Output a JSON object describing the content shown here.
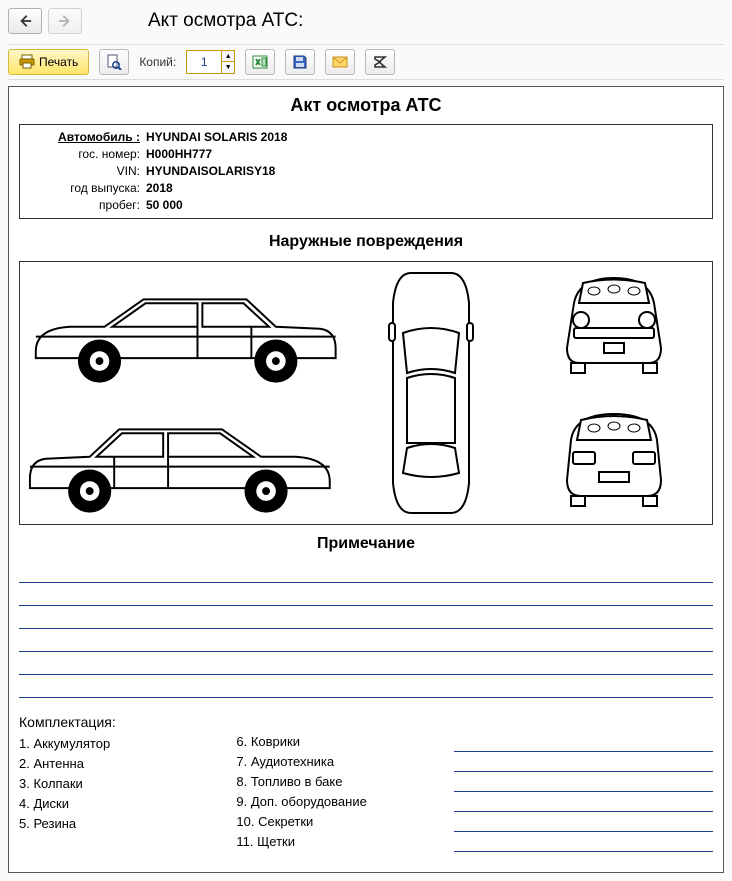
{
  "window": {
    "title": "Акт осмотра АТС:"
  },
  "toolbar": {
    "print_label": "Печать",
    "copies_label": "Копий:",
    "copies_value": "1"
  },
  "document": {
    "title": "Акт осмотра АТС",
    "info": {
      "vehicle_label": "Автомобиль :",
      "vehicle_value": "HYUNDAI SOLARIS 2018",
      "plate_label": "гос. номер:",
      "plate_value": "H000HH777",
      "vin_label": "VIN:",
      "vin_value": "HYUNDAISOLARISY18",
      "year_label": "год выпуска:",
      "year_value": "2018",
      "mileage_label": "пробег:",
      "mileage_value": "50 000"
    },
    "damage_heading": "Наружные повреждения",
    "notes_heading": "Примечание",
    "notes_line_count": 6,
    "equipment": {
      "title": "Комплектация:",
      "col1": [
        "1. Аккумулятор",
        "2. Антенна",
        "3. Колпаки",
        "4. Диски",
        "5. Резина"
      ],
      "col2": [
        "6. Коврики",
        "7. Аудиотехника",
        "8. Топливо в баке",
        "9. Доп. оборудование",
        "10. Секретки",
        "11. Щетки"
      ]
    }
  },
  "style": {
    "line_color": "#1a3f8a",
    "border_color": "#333333",
    "accent_yellow": "#ffe56a"
  }
}
